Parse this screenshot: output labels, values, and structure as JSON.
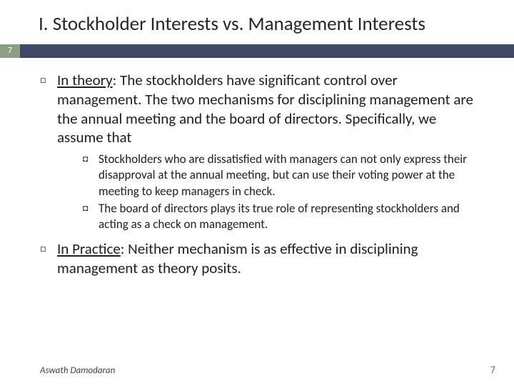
{
  "colors": {
    "accent_bar": "#3f4864",
    "page_chip_bg": "#8c9e84",
    "page_chip_fg": "#ffffff",
    "footer_page_color": "#a35a4a",
    "text_color": "#202020",
    "background": "#ffffff"
  },
  "title": "I. Stockholder Interests vs. Management Interests",
  "page_chip": "7",
  "body": {
    "item1": {
      "lead": "In theory",
      "rest": ":  The stockholders have significant control over management. The two mechanisms for disciplining management are the annual meeting and the board of directors. Specifically, we assume that",
      "sub1": "Stockholders who are dissatisfied with managers can not only express their disapproval at the annual meeting, but can use their voting power at the meeting to keep managers in check.",
      "sub2": "The board of directors plays its true role of representing stockholders and acting as a check on management."
    },
    "item2": {
      "lead": "In Practice",
      "rest": ":  Neither mechanism is as effective in disciplining management as theory posits."
    }
  },
  "footer": {
    "author": "Aswath Damodaran",
    "page": "7"
  },
  "bullets": {
    "lvl1": "□",
    "lvl2": "◘"
  }
}
